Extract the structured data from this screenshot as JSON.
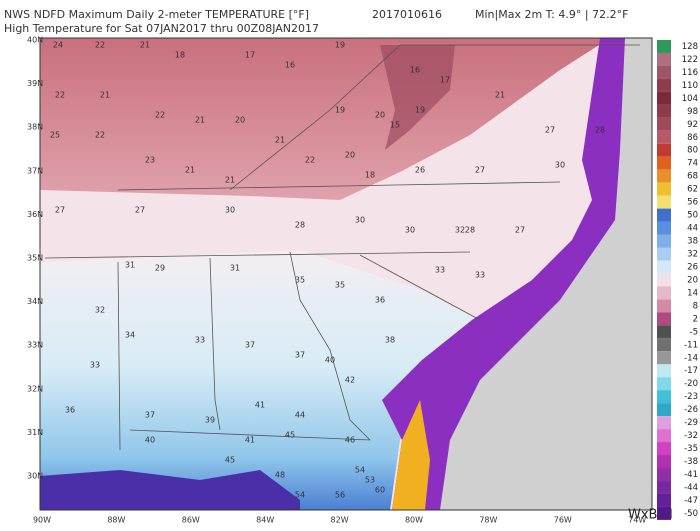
{
  "header": {
    "product": "NWS NDFD Maximum Daily 2-meter TEMPERATURE [°F]",
    "run": "2017010616",
    "minmax": "Min|Max 2m T: 4.9°  |  72.2°F",
    "valid": "High Temperature for Sat 07JAN2017 thru 00Z08JAN2017"
  },
  "latitude_labels": [
    "40N",
    "39N",
    "38N",
    "37N",
    "36N",
    "35N",
    "34N",
    "33N",
    "32N",
    "31N",
    "30N"
  ],
  "longitude_labels": [
    "90W",
    "88W",
    "86W",
    "84W",
    "82W",
    "80W",
    "78W",
    "76W",
    "74W"
  ],
  "colorbar": [
    128,
    122,
    116,
    110,
    104,
    98,
    92,
    86,
    80,
    74,
    68,
    62,
    56,
    50,
    44,
    38,
    32,
    26,
    20,
    14,
    8,
    2,
    -5,
    -11,
    -14,
    -17,
    -20,
    -23,
    -26,
    -29,
    -32,
    -35,
    -38,
    -41,
    -44,
    -47,
    -50
  ],
  "map_values": [
    24,
    22,
    21,
    18,
    17,
    16,
    19,
    16,
    17,
    22,
    21,
    22,
    21,
    20,
    21,
    19,
    20,
    19,
    15,
    21,
    27,
    28,
    25,
    22,
    23,
    21,
    21,
    22,
    20,
    18,
    26,
    27,
    30,
    27,
    27,
    30,
    28,
    30,
    30,
    28,
    27,
    31,
    29,
    31,
    35,
    35,
    36,
    33,
    33,
    32,
    34,
    33,
    37,
    37,
    42,
    40,
    38,
    33,
    36,
    37,
    39,
    41,
    44,
    46,
    41,
    45,
    40,
    45,
    48,
    54,
    56,
    54,
    53,
    60,
    32
  ],
  "logo": "WxBell"
}
